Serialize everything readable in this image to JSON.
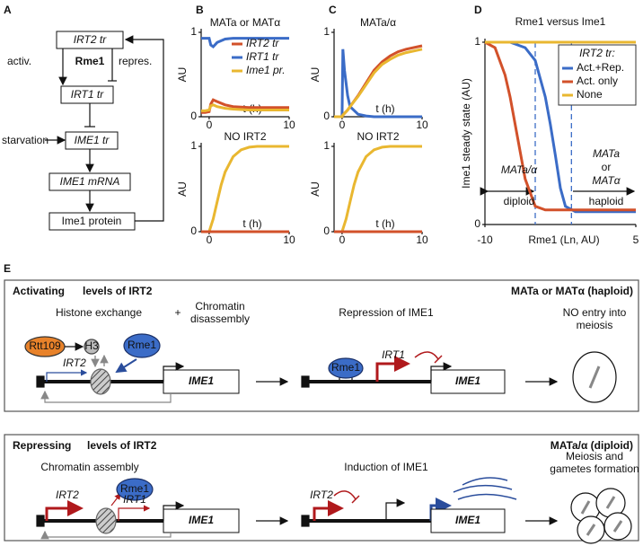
{
  "panel_labels": [
    "A",
    "B",
    "C",
    "D",
    "E"
  ],
  "panel_a": {
    "nodes": [
      "IRT2 tr",
      "Rme1",
      "IRT1 tr",
      "IME1 tr",
      "IME1 mRNA",
      "Ime1 protein"
    ],
    "edge_labels": [
      "activ.",
      "repres.",
      "starvation"
    ]
  },
  "chart_data": [
    {
      "type": "line",
      "title": "MATa or MATα",
      "xlabel": "t (h)",
      "ylabel": "AU",
      "xlim": [
        -1,
        10
      ],
      "ylim": [
        0,
        1
      ],
      "xticks": [
        0,
        10
      ],
      "yticks": [
        0,
        1
      ],
      "legend": "top-right",
      "x": [
        -1,
        -0.5,
        0,
        0.2,
        0.5,
        1,
        2,
        3,
        5,
        7,
        10
      ],
      "series": [
        {
          "name": "IRT2 tr",
          "color": "#d2512a",
          "values": [
            0.05,
            0.05,
            0.06,
            0.15,
            0.2,
            0.18,
            0.14,
            0.12,
            0.11,
            0.11,
            0.11
          ]
        },
        {
          "name": "IRT1 tr",
          "color": "#3b6cc7",
          "values": [
            0.93,
            0.93,
            0.93,
            0.85,
            0.83,
            0.88,
            0.92,
            0.93,
            0.93,
            0.93,
            0.93
          ]
        },
        {
          "name": "Ime1 pr.",
          "color": "#e9b730",
          "values": [
            0.07,
            0.07,
            0.08,
            0.13,
            0.14,
            0.12,
            0.1,
            0.09,
            0.08,
            0.08,
            0.08
          ]
        }
      ]
    },
    {
      "type": "line",
      "title": "NO IRT2",
      "xlabel": "t (h)",
      "ylabel": "AU",
      "xlim": [
        -1,
        10
      ],
      "ylim": [
        0,
        1
      ],
      "xticks": [
        0,
        10
      ],
      "yticks": [
        0,
        1
      ],
      "x": [
        -1,
        0,
        0.5,
        1,
        1.5,
        2,
        3,
        4,
        5,
        6,
        8,
        10
      ],
      "series": [
        {
          "color": "#e9b730",
          "values": [
            0,
            0,
            0.15,
            0.35,
            0.55,
            0.7,
            0.88,
            0.96,
            0.99,
            1,
            1,
            1
          ]
        },
        {
          "color": "#d2512a",
          "values": [
            0,
            0,
            0,
            0,
            0,
            0,
            0,
            0,
            0,
            0,
            0,
            0
          ]
        }
      ]
    },
    {
      "type": "line",
      "title": "MATa/α",
      "xlabel": "t (h)",
      "ylabel": "AU",
      "xlim": [
        -1,
        10
      ],
      "ylim": [
        0,
        1
      ],
      "xticks": [
        0,
        10
      ],
      "yticks": [
        0,
        1
      ],
      "x": [
        -1,
        0,
        0.1,
        0.3,
        0.7,
        1,
        2,
        3,
        4,
        5,
        6,
        7,
        8,
        10
      ],
      "series": [
        {
          "color": "#3b6cc7",
          "values": [
            0,
            0,
            0.8,
            0.55,
            0.25,
            0.12,
            0.03,
            0.01,
            0,
            0,
            0,
            0,
            0,
            0
          ]
        },
        {
          "color": "#d2512a",
          "values": [
            0,
            0,
            0.02,
            0.04,
            0.08,
            0.12,
            0.25,
            0.4,
            0.55,
            0.65,
            0.72,
            0.77,
            0.8,
            0.84
          ]
        },
        {
          "color": "#e9b730",
          "values": [
            0,
            0,
            0.02,
            0.04,
            0.08,
            0.12,
            0.24,
            0.38,
            0.52,
            0.62,
            0.68,
            0.73,
            0.76,
            0.8
          ]
        }
      ]
    },
    {
      "type": "line",
      "title": "NO IRT2",
      "xlabel": "t (h)",
      "ylabel": "AU",
      "xlim": [
        -1,
        10
      ],
      "ylim": [
        0,
        1
      ],
      "xticks": [
        0,
        10
      ],
      "yticks": [
        0,
        1
      ],
      "x": [
        -1,
        0,
        0.5,
        1,
        1.5,
        2,
        3,
        4,
        5,
        6,
        8,
        10
      ],
      "series": [
        {
          "color": "#e9b730",
          "values": [
            0,
            0,
            0.15,
            0.35,
            0.55,
            0.7,
            0.88,
            0.96,
            0.99,
            1,
            1,
            1
          ]
        },
        {
          "color": "#d2512a",
          "values": [
            0,
            0,
            0,
            0,
            0,
            0,
            0,
            0,
            0,
            0,
            0,
            0
          ]
        }
      ]
    },
    {
      "type": "line",
      "title": "Rme1 versus Ime1",
      "xlabel": "Rme1 (Ln, AU)",
      "ylabel": "Ime1 steady state (AU)",
      "xlim": [
        -10,
        5
      ],
      "ylim": [
        0,
        1
      ],
      "xticks": [
        -10,
        5
      ],
      "yticks": [
        0,
        1
      ],
      "legend": "top-right",
      "legend_title": "IRT2 tr:",
      "vlines": [
        -5,
        -1.4
      ],
      "annotations": [
        "MATa/α",
        "diploid",
        "MATa",
        "or",
        "MATα",
        "haploid"
      ],
      "x": [
        -10,
        -9,
        -8,
        -7.5,
        -7,
        -6,
        -5,
        -4,
        -3.5,
        -3,
        -2.5,
        -2,
        -1,
        0,
        5
      ],
      "series": [
        {
          "name": "Act.+Rep.",
          "color": "#3b6cc7",
          "values": [
            1,
            1,
            1,
            1,
            0.99,
            0.97,
            0.9,
            0.7,
            0.55,
            0.38,
            0.2,
            0.1,
            0.07,
            0.07,
            0.07
          ]
        },
        {
          "name": "Act. only",
          "color": "#d2512a",
          "values": [
            1,
            0.97,
            0.82,
            0.7,
            0.55,
            0.25,
            0.1,
            0.08,
            0.08,
            0.08,
            0.08,
            0.08,
            0.08,
            0.08,
            0.08
          ]
        },
        {
          "name": "None",
          "color": "#e9b730",
          "values": [
            1,
            1,
            1,
            1,
            1,
            1,
            1,
            1,
            1,
            1,
            1,
            1,
            1,
            1,
            1
          ]
        }
      ]
    }
  ],
  "panel_e": {
    "top": {
      "title_emph": "Activating",
      "title_rest": "levels of IRT2",
      "condition": "MATa or MATα (haploid)",
      "step1": "Histone exchange",
      "plus": "+",
      "step1b": [
        "Chromatin",
        "disassembly"
      ],
      "rtt109": "Rtt109",
      "h3": "H3",
      "rme1": "Rme1",
      "irt2": "IRT2",
      "ime1": "IME1",
      "step2": "Repression of IME1",
      "rme1_bound": "Rme1",
      "irt1": "IRT1",
      "ime1_b": "IME1",
      "outcome": [
        "NO entry into",
        "meiosis"
      ]
    },
    "bottom": {
      "title_emph": "Repressing",
      "title_rest": "levels of IRT2",
      "condition": "MATa/α (diploid)",
      "step1": "Chromatin assembly",
      "rme1": "Rme1",
      "irt2": "IRT2",
      "irt1": "IRT1",
      "ime1": "IME1",
      "step2": "Induction of IME1",
      "irt2_b": "IRT2",
      "ime1_b": "IME1",
      "outcome": [
        "Meiosis and",
        "gametes formation"
      ]
    }
  }
}
